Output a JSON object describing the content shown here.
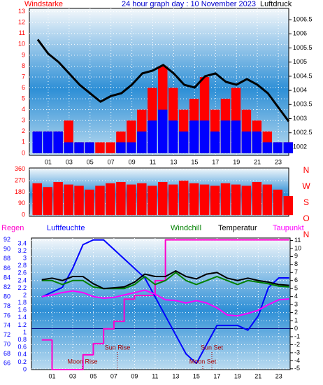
{
  "chart_data": [
    {
      "type": "bar",
      "title": "24 hour graph day : 10 November 2023",
      "ylabel": "Windstarke",
      "y2label": "Luftdruck",
      "x": [
        0,
        1,
        2,
        3,
        4,
        5,
        6,
        7,
        8,
        9,
        10,
        11,
        12,
        13,
        14,
        15,
        16,
        17,
        18,
        19,
        20,
        21,
        22,
        23,
        24
      ],
      "xlim": [
        -0.8,
        24
      ],
      "xticks": [
        {
          "value": 1,
          "label": "01"
        },
        {
          "value": 3,
          "label": "03"
        },
        {
          "value": 5,
          "label": "05"
        },
        {
          "value": 7,
          "label": "07"
        },
        {
          "value": 9,
          "label": "09"
        },
        {
          "value": 11,
          "label": "11"
        },
        {
          "value": 13,
          "label": "13"
        },
        {
          "value": 15,
          "label": "15"
        },
        {
          "value": 17,
          "label": "17"
        },
        {
          "value": 19,
          "label": "19"
        },
        {
          "value": 21,
          "label": "21"
        },
        {
          "value": 23,
          "label": "23"
        }
      ],
      "ylim": [
        -0.2,
        13.3
      ],
      "yticks": [
        0,
        1,
        2,
        3,
        4,
        5,
        6,
        7,
        8,
        9,
        10,
        11,
        12,
        13
      ],
      "y2lim": [
        1001.7,
        1006.9
      ],
      "y2ticks": [
        1002,
        1002.5,
        1003,
        1003.5,
        1004,
        1004.5,
        1005,
        1005.5,
        1006,
        1006.5
      ],
      "series": [
        {
          "color": "#ff0000",
          "values": [
            2,
            2,
            2,
            3,
            1,
            1,
            1,
            1,
            2,
            3,
            4,
            6,
            8,
            6,
            4,
            5,
            7,
            4,
            5,
            6,
            4,
            3,
            2,
            1,
            1
          ]
        },
        {
          "color": "#0000ff",
          "values": [
            2,
            2,
            2,
            1,
            1,
            1,
            0,
            0,
            1,
            1,
            2,
            3,
            4,
            3,
            2,
            3,
            3,
            2,
            3,
            3,
            2,
            2,
            1,
            1,
            1
          ]
        },
        {
          "color": "#000000",
          "axis": "y2",
          "values": [
            1005.8,
            1005.3,
            1005.0,
            1004.6,
            1004.2,
            1003.9,
            1003.6,
            1003.8,
            1003.9,
            1004.2,
            1004.6,
            1004.7,
            1004.9,
            1004.6,
            1004.2,
            1004.1,
            1004.5,
            1004.6,
            1004.3,
            1004.2,
            1004.4,
            1004.2,
            1003.9,
            1003.4,
            1002.9
          ]
        }
      ],
      "grid": true
    },
    {
      "type": "bar",
      "x": [
        0,
        1,
        2,
        3,
        4,
        5,
        6,
        7,
        8,
        9,
        10,
        11,
        12,
        13,
        14,
        15,
        16,
        17,
        18,
        19,
        20,
        21,
        22,
        23,
        24
      ],
      "xlim": [
        -0.8,
        24
      ],
      "ylim": [
        -10,
        370
      ],
      "yticks": [
        0,
        90,
        180,
        270,
        360
      ],
      "direction_labels": [
        "N",
        "W",
        "S",
        "O",
        "N"
      ],
      "series": [
        {
          "color": "#ff0000",
          "values": [
            250,
            220,
            260,
            240,
            230,
            200,
            230,
            250,
            260,
            240,
            250,
            230,
            260,
            240,
            270,
            250,
            240,
            230,
            250,
            240,
            230,
            260,
            240,
            200,
            150
          ]
        }
      ],
      "grid": true
    },
    {
      "type": "line",
      "labels": [
        "Regen",
        "Luftfeuchte",
        "Windchill",
        "Temperatur",
        "Taupunkt"
      ],
      "x": [
        0,
        1,
        2,
        3,
        4,
        5,
        6,
        7,
        8,
        9,
        10,
        11,
        12,
        13,
        14,
        15,
        16,
        17,
        18,
        19,
        20,
        21,
        22,
        23,
        24
      ],
      "xlim": [
        -1,
        24.1
      ],
      "xticks": [
        {
          "value": 1,
          "label": "01"
        },
        {
          "value": 3,
          "label": "03"
        },
        {
          "value": 5,
          "label": "05"
        },
        {
          "value": 7,
          "label": "07"
        },
        {
          "value": 9,
          "label": "09"
        },
        {
          "value": 11,
          "label": "11"
        },
        {
          "value": 13,
          "label": "13"
        },
        {
          "value": 15,
          "label": "15"
        },
        {
          "value": 17,
          "label": "17"
        },
        {
          "value": 19,
          "label": "19"
        },
        {
          "value": 21,
          "label": "21"
        },
        {
          "value": 23,
          "label": "23"
        }
      ],
      "ylim": [
        64.7,
        92.4
      ],
      "yticks": [
        66,
        68,
        70,
        72,
        74,
        76,
        78,
        80,
        82,
        84,
        86,
        88,
        90,
        92
      ],
      "y2lim": [
        -5.1,
        11.3
      ],
      "y2ticks": [
        -5,
        -4,
        -3,
        -2,
        -1,
        0,
        1,
        2,
        3,
        4,
        5,
        6,
        7,
        8,
        9,
        10,
        11
      ],
      "y3lim": [
        0,
        3.55
      ],
      "y3ticks": [
        0,
        0.2,
        0.4,
        0.6,
        0.8,
        1,
        1.2,
        1.4,
        1.6,
        1.8,
        2,
        2.2,
        2.4,
        2.6,
        2.8,
        3,
        3.2,
        3.4
      ],
      "series": [
        {
          "name": "Regen",
          "color": "#ff00cc",
          "axis": "y3",
          "values": [
            0.8,
            0,
            0,
            0,
            0.4,
            0.7,
            1.1,
            1.3,
            1.9,
            2.0,
            2.0,
            2.4,
            3.5,
            3.5,
            3.5,
            3.5,
            3.5,
            3.5,
            3.5,
            3.5,
            3.5,
            3.5,
            3.5,
            3.5,
            3.5
          ]
        },
        {
          "name": "Luftfeuchte",
          "color": "#0000ff",
          "values": [
            80,
            81,
            82,
            86,
            91,
            92,
            92,
            90,
            88,
            86,
            84,
            80,
            76,
            72,
            68,
            66,
            70,
            74,
            74,
            74,
            73,
            76,
            82,
            84,
            84
          ]
        },
        {
          "name": "Windchill",
          "color": "#008000",
          "axis": "y2",
          "values": [
            6,
            6,
            5.5,
            6,
            6,
            5.2,
            5,
            5,
            5,
            5.5,
            6.5,
            5.5,
            6,
            7,
            6,
            5.5,
            6,
            6.5,
            6,
            5.5,
            6,
            5.8,
            5.6,
            5.3,
            5.2
          ]
        },
        {
          "name": "Temperatur",
          "color": "#000000",
          "axis": "y2",
          "values": [
            6.1,
            6.3,
            6.0,
            6.5,
            6.5,
            5.6,
            5.0,
            5.1,
            5.2,
            5.8,
            6.8,
            6.5,
            6.5,
            7.2,
            6.5,
            6.2,
            6.8,
            7.0,
            6.3,
            6.0,
            6.3,
            6.0,
            5.8,
            5.5,
            5.4
          ]
        },
        {
          "name": "Taupunkt",
          "color": "#ff00ff",
          "axis": "y2",
          "values": [
            4.0,
            4.2,
            4.5,
            4.7,
            4.5,
            4.0,
            3.8,
            3.9,
            4.2,
            4.5,
            4.8,
            4.3,
            3.6,
            3.5,
            3.2,
            3.5,
            3.2,
            2.6,
            1.7,
            1.6,
            1.9,
            2.3,
            3.0,
            3.6,
            3.7
          ]
        }
      ],
      "annotations": [
        "Sun Rise",
        "Moon Rise",
        "Moon Set",
        "Sun Set"
      ],
      "grid": true
    }
  ]
}
